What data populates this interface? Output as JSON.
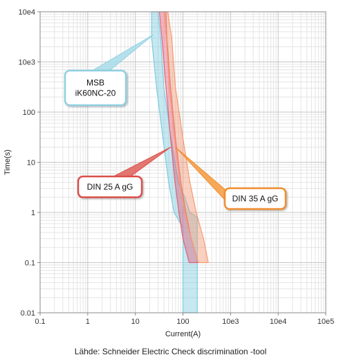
{
  "chart_data": {
    "type": "line",
    "title": "",
    "xlabel": "Current(A)",
    "ylabel": "Time(s)",
    "xscale": "log",
    "yscale": "log",
    "xlim": [
      0.1,
      100000
    ],
    "ylim": [
      0.01,
      10000
    ],
    "grid": true,
    "x_tick_labels": [
      "0.1",
      "1",
      "10",
      "100",
      "10e3",
      "10e4",
      "10e5"
    ],
    "y_tick_labels": [
      "0.01",
      "0.1",
      "1",
      "10",
      "100",
      "10e3",
      "10e4"
    ],
    "series": [
      {
        "name": "MSB iK60NC-20",
        "color": "#7ecbe0",
        "band": {
          "left": [
            [
              22,
              10000
            ],
            [
              22,
              3000
            ],
            [
              28,
              300
            ],
            [
              38,
              30
            ],
            [
              50,
              4
            ],
            [
              65,
              1
            ],
            [
              100,
              0.5
            ],
            [
              100,
              0.01
            ]
          ],
          "right": [
            [
              30,
              10000
            ],
            [
              34,
              3000
            ],
            [
              40,
              300
            ],
            [
              56,
              30
            ],
            [
              80,
              4
            ],
            [
              110,
              2
            ],
            [
              140,
              1
            ],
            [
              200,
              0.8
            ],
            [
              200,
              0.01
            ]
          ]
        }
      },
      {
        "name": "DIN 25 A gG",
        "color": "#e0607a",
        "band": {
          "left": [
            [
              32,
              10000
            ],
            [
              36,
              3000
            ],
            [
              44,
              300
            ],
            [
              55,
              30
            ],
            [
              68,
              4
            ],
            [
              82,
              1
            ],
            [
              100,
              0.3
            ],
            [
              135,
              0.1
            ]
          ],
          "right": [
            [
              44,
              10000
            ],
            [
              46,
              3000
            ],
            [
              55,
              300
            ],
            [
              70,
              30
            ],
            [
              90,
              4
            ],
            [
              115,
              1
            ],
            [
              150,
              0.3
            ],
            [
              210,
              0.1
            ]
          ]
        }
      },
      {
        "name": "DIN 35 A gG",
        "color": "#f59a74",
        "band": {
          "left": [
            [
              40,
              10000
            ],
            [
              45,
              3000
            ],
            [
              52,
              300
            ],
            [
              66,
              30
            ],
            [
              85,
              4
            ],
            [
              108,
              1
            ],
            [
              150,
              0.3
            ],
            [
              210,
              0.1
            ]
          ],
          "right": [
            [
              48,
              10000
            ],
            [
              58,
              3000
            ],
            [
              70,
              300
            ],
            [
              100,
              30
            ],
            [
              140,
              4
            ],
            [
              190,
              1
            ],
            [
              270,
              0.3
            ],
            [
              340,
              0.1
            ]
          ]
        }
      }
    ],
    "callouts": [
      {
        "id": "msb",
        "lines": [
          "MSB",
          "iK60NC-20"
        ],
        "border_color": "#8fd0e0",
        "tail_color": "#a8dce9",
        "tip": [
          24,
          3500
        ]
      },
      {
        "id": "din25",
        "lines": [
          "DIN 25 A gG"
        ],
        "border_color": "#d9504a",
        "tail_color": "#e0605a",
        "tip": [
          55,
          20
        ]
      },
      {
        "id": "din35",
        "lines": [
          "DIN 35 A gG"
        ],
        "border_color": "#f18c2e",
        "tail_color": "#f59a3c",
        "tip": [
          70,
          20
        ]
      }
    ]
  },
  "source_note": "Lähde: Schneider Electric Check discrimination -tool"
}
